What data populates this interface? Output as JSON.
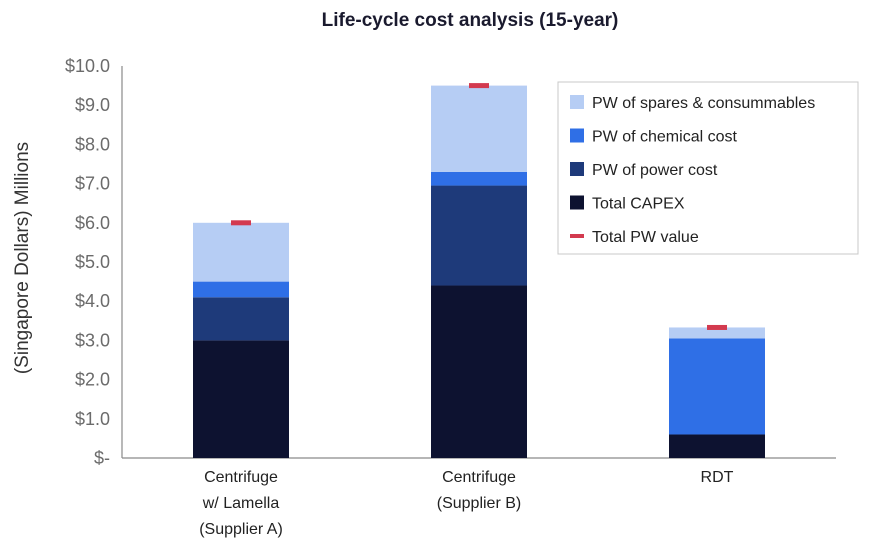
{
  "chart_data": {
    "type": "bar",
    "stacked": true,
    "title": "Life-cycle cost analysis (15-year)",
    "ylabel": "(Singapore Dollars) Millions",
    "ylim": [
      0,
      10
    ],
    "yticks": [
      "$-",
      "$1.0",
      "$2.0",
      "$3.0",
      "$4.0",
      "$5.0",
      "$6.0",
      "$7.0",
      "$8.0",
      "$9.0",
      "$10.0"
    ],
    "categories": [
      [
        "Centrifuge",
        "w/ Lamella",
        "(Supplier A)"
      ],
      [
        "Centrifuge",
        "(Supplier B)"
      ],
      [
        "RDT"
      ]
    ],
    "series": [
      {
        "name": "Total CAPEX",
        "color": "#0d1230",
        "values": [
          3.0,
          4.4,
          0.6
        ]
      },
      {
        "name": "PW of power cost",
        "color": "#1e3a7a",
        "values": [
          1.1,
          2.55,
          0.0
        ]
      },
      {
        "name": "PW of chemical cost",
        "color": "#2f6fe6",
        "values": [
          0.4,
          0.35,
          2.45
        ]
      },
      {
        "name": "PW of spares & consummables",
        "color": "#b6cdf4",
        "values": [
          1.5,
          2.2,
          0.28
        ]
      }
    ],
    "total_pw": {
      "name": "Total PW value",
      "color": "#d33a4f",
      "values": [
        6.0,
        9.5,
        3.33
      ]
    },
    "legend": {
      "placement": "top-right",
      "order": [
        "PW of spares & consummables",
        "PW of chemical cost",
        "PW of power cost",
        "Total CAPEX",
        "Total PW value"
      ]
    },
    "grid": false
  }
}
